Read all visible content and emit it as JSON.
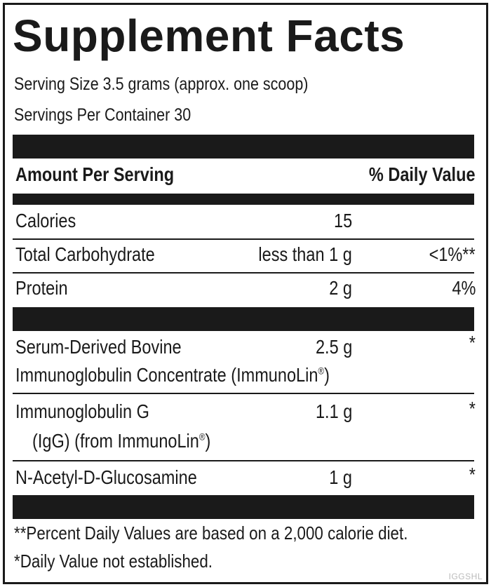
{
  "title": "Supplement Facts",
  "serving_size": "Serving Size 3.5 grams (approx. one scoop)",
  "servings_per_container": "Servings Per Container 30",
  "header": {
    "amount_per_serving": "Amount Per Serving",
    "daily_value": "% Daily Value"
  },
  "nutrients": [
    {
      "name": "Calories",
      "amount": "15",
      "dv": ""
    },
    {
      "name": "Total Carbohydrate",
      "amount": "less than 1 g",
      "dv": "<1%**"
    },
    {
      "name": "Protein",
      "amount": "2 g",
      "dv": "4%"
    }
  ],
  "ingredients": [
    {
      "name_line1": "Serum-Derived Bovine",
      "name_line2": "Immunoglobulin Concentrate (ImmunoLin",
      "amount": "2.5 g",
      "dv": "*"
    },
    {
      "name_line1": "Immunoglobulin G",
      "name_line2": "(IgG) (from ImmunoLin",
      "amount": "1.1 g",
      "dv": "*"
    },
    {
      "name_line1": "N-Acetyl-D-Glucosamine",
      "amount": "1 g",
      "dv": "*"
    }
  ],
  "registered_mark": "®",
  "close_paren": ")",
  "footnotes": [
    "**Percent Daily Values are based on a 2,000 calorie diet.",
    "*Daily Value not established."
  ],
  "product_code": "IGGSHL"
}
